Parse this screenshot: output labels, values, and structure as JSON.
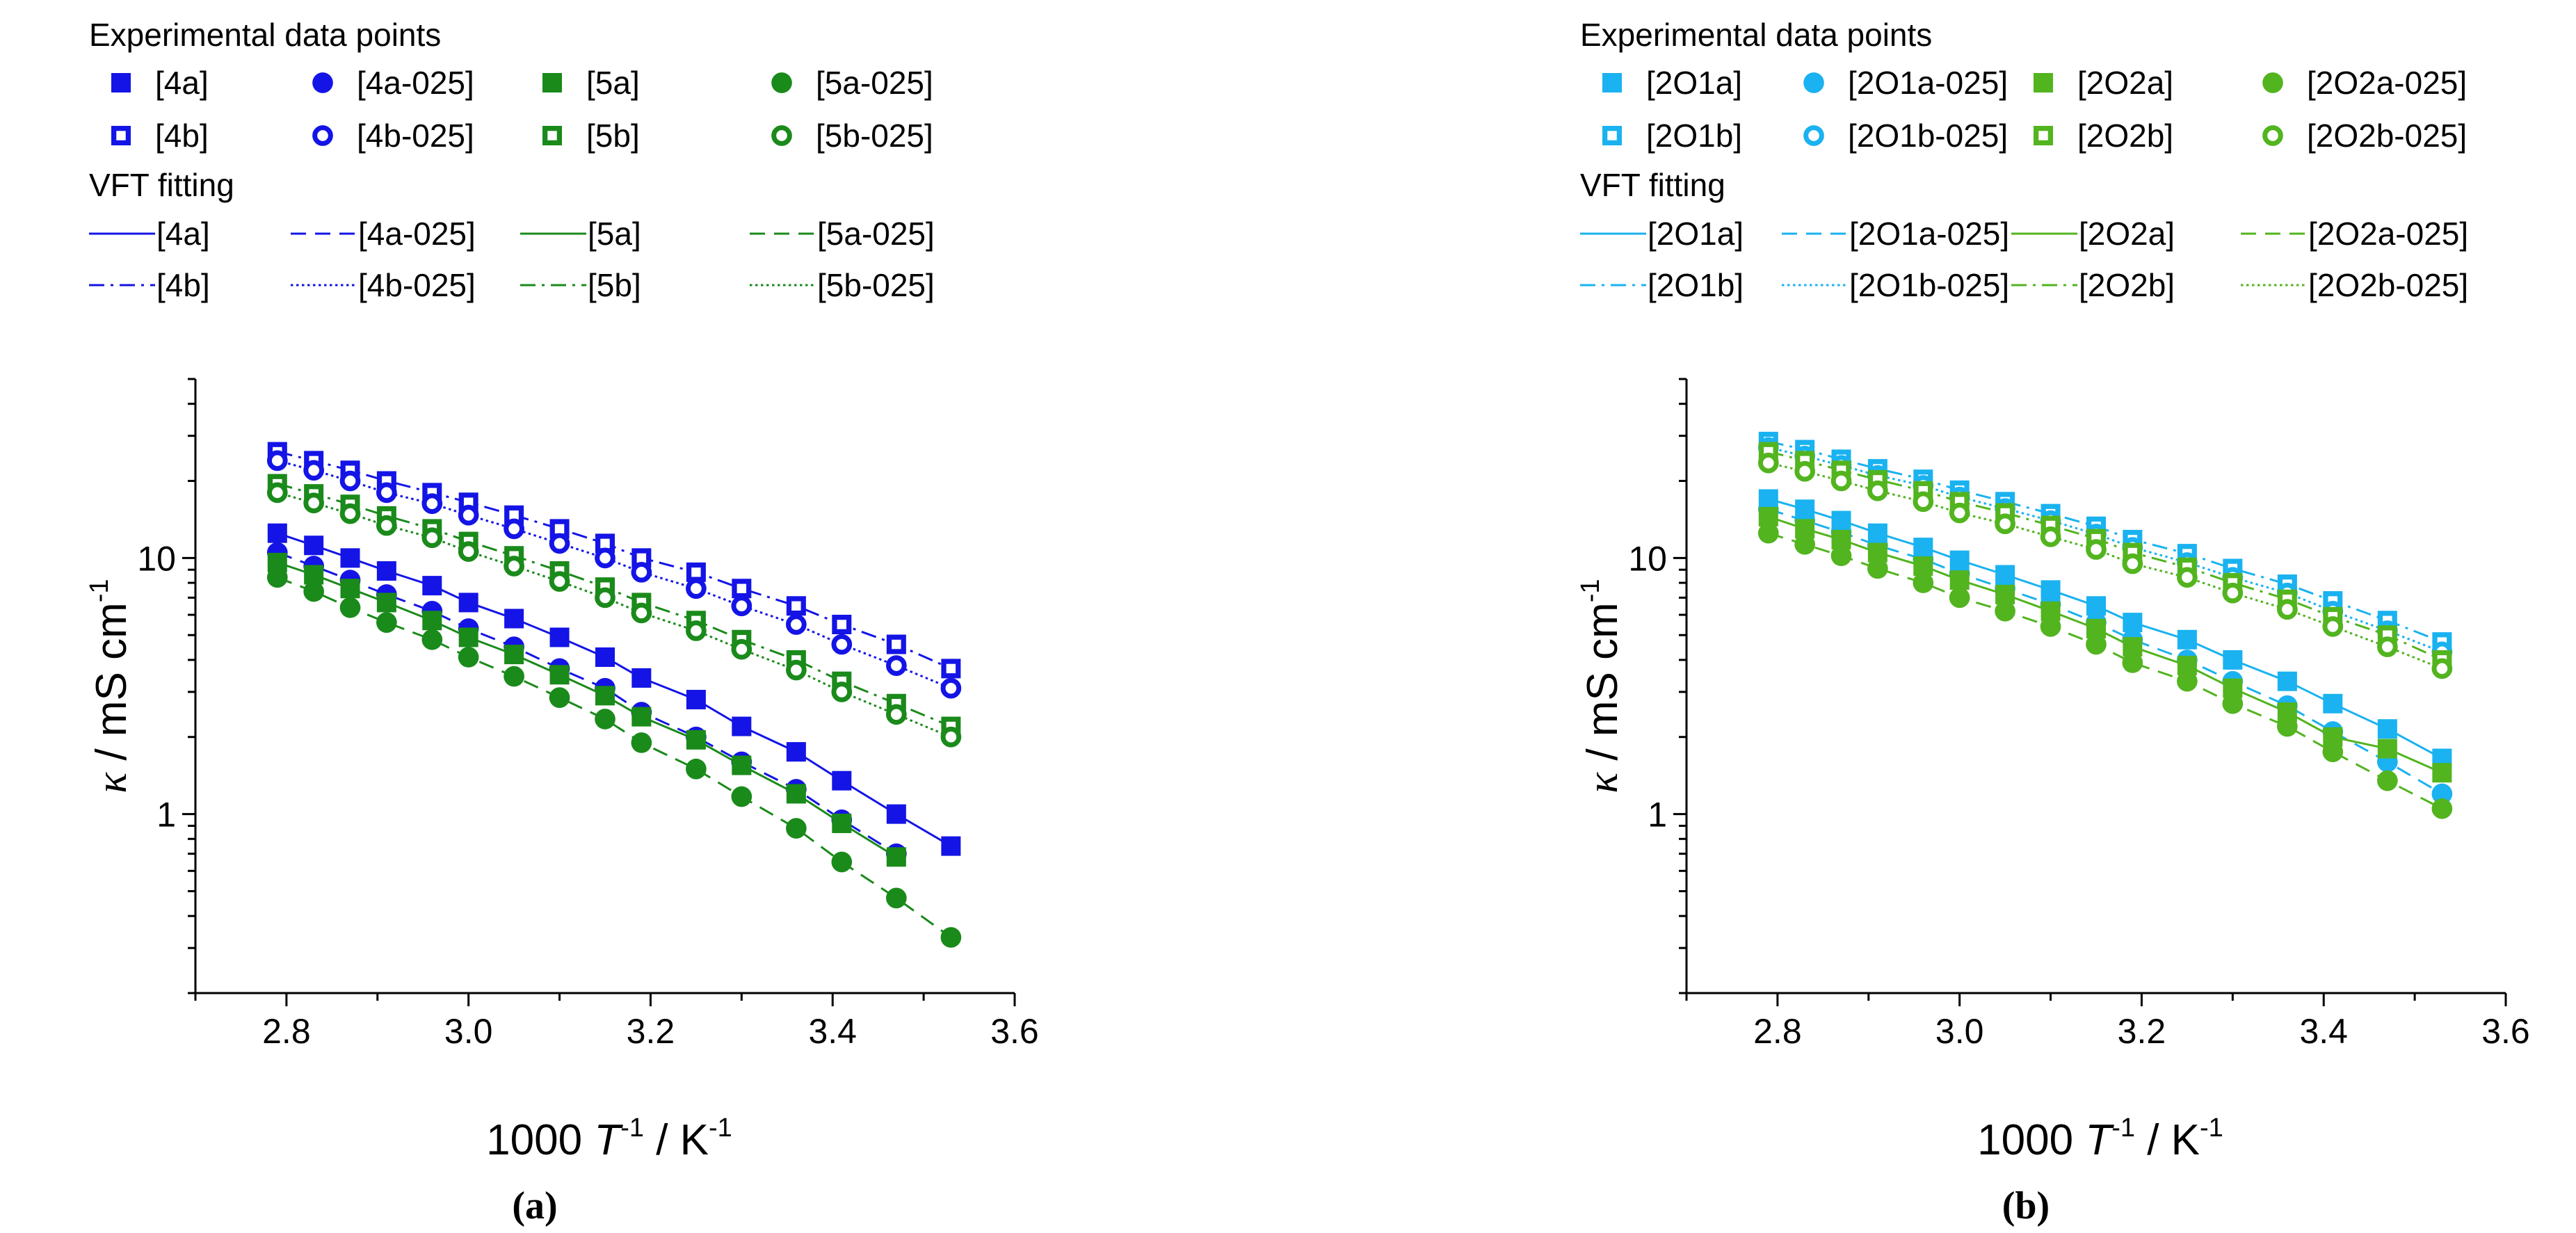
{
  "chart_data": [
    {
      "type": "scatter",
      "panel_label": "(a)",
      "legend": {
        "points_header": "Experimental data points",
        "fit_header": "VFT fitting",
        "columns": [
          [
            "[4a]",
            "[4b]"
          ],
          [
            "[4a-025]",
            "[4b-025]"
          ],
          [
            "[5a]",
            "[5b]"
          ],
          [
            "[5a-025]",
            "[5b-025]"
          ]
        ]
      },
      "xlabel": {
        "base": "1000 ",
        "var": "T",
        "sup": "-1",
        "unit": " / K",
        "unit_sup": "-1"
      },
      "ylabel": {
        "var": "κ",
        "unit": " / mS cm",
        "sup": "-1"
      },
      "xlim": [
        2.7,
        3.6
      ],
      "ylim": [
        0.2,
        50
      ],
      "y_scale": "log",
      "xticks": [
        "2.8",
        "3.0",
        "3.2",
        "3.4",
        "3.6"
      ],
      "yticks": [
        "1",
        "10"
      ],
      "x": [
        2.79,
        2.83,
        2.87,
        2.91,
        2.96,
        3.0,
        3.05,
        3.1,
        3.15,
        3.19,
        3.25,
        3.3,
        3.36,
        3.41,
        3.47,
        3.53
      ],
      "series": [
        {
          "name": "[4a]",
          "color": "#1414e6",
          "marker": "square-filled",
          "line": "solid",
          "values": [
            12.5,
            11.2,
            10.0,
            8.9,
            7.8,
            6.7,
            5.8,
            4.9,
            4.1,
            3.4,
            2.8,
            2.2,
            1.75,
            1.35,
            1.0,
            0.75
          ]
        },
        {
          "name": "[4b]",
          "color": "#1414e6",
          "marker": "square-open",
          "line": "dashdot",
          "values": [
            26,
            24,
            22,
            20,
            18,
            16.5,
            14.7,
            13,
            11.4,
            10,
            8.8,
            7.6,
            6.5,
            5.5,
            4.6,
            3.7
          ]
        },
        {
          "name": "[4a-025]",
          "color": "#1414e6",
          "marker": "circle-filled",
          "line": "dash",
          "values": [
            10.5,
            9.3,
            8.2,
            7.2,
            6.2,
            5.3,
            4.5,
            3.7,
            3.1,
            2.5,
            2.0,
            1.6,
            1.25,
            0.95,
            0.7,
            null
          ]
        },
        {
          "name": "[4b-025]",
          "color": "#1414e6",
          "marker": "circle-open",
          "line": "dot",
          "values": [
            24,
            22,
            20,
            18,
            16.3,
            14.7,
            13.0,
            11.4,
            10.0,
            8.8,
            7.6,
            6.5,
            5.5,
            4.6,
            3.8,
            3.1
          ]
        },
        {
          "name": "[5a]",
          "color": "#1a8a1a",
          "marker": "square-filled",
          "line": "solid",
          "values": [
            9.6,
            8.6,
            7.6,
            6.7,
            5.7,
            4.9,
            4.2,
            3.5,
            2.9,
            2.4,
            1.95,
            1.55,
            1.2,
            0.92,
            0.68,
            null
          ]
        },
        {
          "name": "[5b]",
          "color": "#1a8a1a",
          "marker": "square-open",
          "line": "dashdot",
          "values": [
            19.5,
            17.8,
            16.2,
            14.6,
            13.0,
            11.6,
            10.2,
            8.9,
            7.7,
            6.7,
            5.7,
            4.8,
            4.0,
            3.3,
            2.7,
            2.2
          ]
        },
        {
          "name": "[5a-025]",
          "color": "#1a8a1a",
          "marker": "circle-filled",
          "line": "dash",
          "values": [
            8.4,
            7.4,
            6.4,
            5.6,
            4.8,
            4.1,
            3.45,
            2.85,
            2.35,
            1.9,
            1.5,
            1.17,
            0.88,
            0.65,
            0.47,
            0.33
          ]
        },
        {
          "name": "[5b-025]",
          "color": "#1a8a1a",
          "marker": "circle-open",
          "line": "dot",
          "values": [
            18,
            16.4,
            14.9,
            13.4,
            12.0,
            10.6,
            9.3,
            8.1,
            7.0,
            6.1,
            5.2,
            4.4,
            3.65,
            3.0,
            2.45,
            2.0
          ]
        }
      ]
    },
    {
      "type": "scatter",
      "panel_label": "(b)",
      "legend": {
        "points_header": "Experimental data points",
        "fit_header": "VFT fitting",
        "columns": [
          [
            "[2O1a]",
            "[2O1b]"
          ],
          [
            "[2O1a-025]",
            "[2O1b-025]"
          ],
          [
            "[2O2a]",
            "[2O2b]"
          ],
          [
            "[2O2a-025]",
            "[2O2b-025]"
          ]
        ]
      },
      "xlabel": {
        "base": "1000 ",
        "var": "T",
        "sup": "-1",
        "unit": " / K",
        "unit_sup": "-1"
      },
      "ylabel": {
        "var": "κ",
        "unit": " / mS cm",
        "sup": "-1"
      },
      "xlim": [
        2.7,
        3.6
      ],
      "ylim": [
        0.2,
        50
      ],
      "y_scale": "log",
      "xticks": [
        "2.8",
        "3.0",
        "3.2",
        "3.4",
        "3.6"
      ],
      "yticks": [
        "1",
        "10"
      ],
      "x": [
        2.79,
        2.83,
        2.87,
        2.91,
        2.96,
        3.0,
        3.05,
        3.1,
        3.15,
        3.19,
        3.25,
        3.3,
        3.36,
        3.41,
        3.47,
        3.53
      ],
      "series": [
        {
          "name": "[2O1a]",
          "color": "#1ab2f0",
          "marker": "square-filled",
          "line": "solid",
          "values": [
            17,
            15.5,
            14,
            12.5,
            11.0,
            9.8,
            8.6,
            7.5,
            6.5,
            5.6,
            4.8,
            4.0,
            3.3,
            2.7,
            2.15,
            1.65
          ]
        },
        {
          "name": "[2O1b]",
          "color": "#1ab2f0",
          "marker": "square-open",
          "line": "dashdot",
          "values": [
            28.5,
            26.5,
            24.3,
            22.3,
            20.3,
            18.4,
            16.6,
            14.9,
            13.3,
            11.8,
            10.4,
            9.1,
            7.9,
            6.8,
            5.7,
            4.7
          ]
        },
        {
          "name": "[2O1a-025]",
          "color": "#1ab2f0",
          "marker": "circle-filled",
          "line": "dash",
          "values": [
            15.5,
            14.0,
            12.6,
            11.2,
            9.9,
            8.7,
            7.6,
            6.6,
            5.6,
            4.8,
            4.0,
            3.3,
            2.65,
            2.1,
            1.6,
            1.2
          ]
        },
        {
          "name": "[2O1b-025]",
          "color": "#1ab2f0",
          "marker": "circle-open",
          "line": "dot",
          "values": [
            27,
            25,
            23,
            21,
            19.2,
            17.3,
            15.6,
            14.0,
            12.4,
            11.0,
            9.6,
            8.4,
            7.3,
            6.2,
            5.2,
            4.3
          ]
        },
        {
          "name": "[2O2a]",
          "color": "#52b41e",
          "marker": "square-filled",
          "line": "solid",
          "values": [
            14.5,
            13.0,
            11.8,
            10.5,
            9.3,
            8.2,
            7.2,
            6.2,
            5.3,
            4.5,
            3.8,
            3.1,
            2.5,
            2.0,
            1.8,
            1.45
          ]
        },
        {
          "name": "[2O2b]",
          "color": "#52b41e",
          "marker": "square-open",
          "line": "dashdot",
          "values": [
            26,
            24,
            22,
            20.2,
            18.3,
            16.6,
            15.0,
            13.4,
            11.9,
            10.5,
            9.2,
            8.0,
            6.9,
            5.9,
            5.0,
            4.0
          ]
        },
        {
          "name": "[2O2a-025]",
          "color": "#52b41e",
          "marker": "circle-filled",
          "line": "dash",
          "values": [
            12.5,
            11.3,
            10.2,
            9.1,
            8.0,
            7.0,
            6.2,
            5.4,
            4.6,
            3.9,
            3.3,
            2.7,
            2.2,
            1.75,
            1.35,
            1.05
          ]
        },
        {
          "name": "[2O2b-025]",
          "color": "#52b41e",
          "marker": "circle-open",
          "line": "dot",
          "values": [
            23.5,
            21.8,
            20.0,
            18.3,
            16.6,
            15.0,
            13.6,
            12.1,
            10.8,
            9.5,
            8.4,
            7.3,
            6.3,
            5.4,
            4.5,
            3.7
          ]
        }
      ]
    }
  ]
}
